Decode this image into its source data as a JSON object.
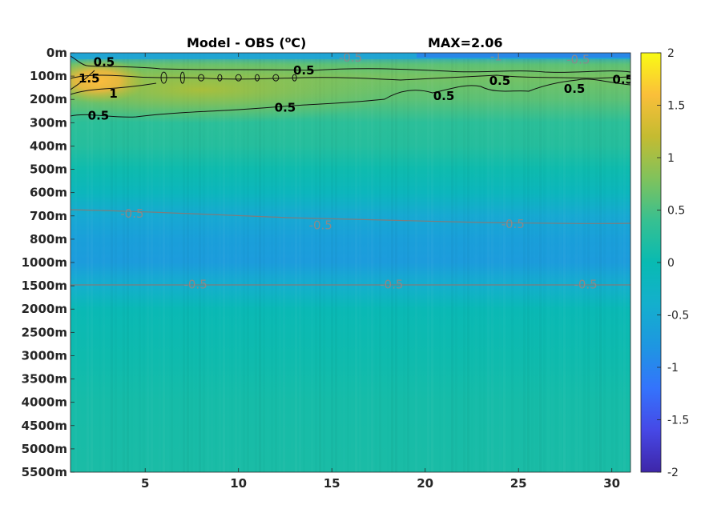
{
  "chart_data": {
    "type": "heatmap",
    "title": "Model - OBS (°C)",
    "title_unit_letter": "o",
    "annotation": "MAX=2.06",
    "xlabel": "",
    "ylabel": "",
    "x_ticks": [
      5,
      10,
      15,
      20,
      25,
      30
    ],
    "xlim": [
      1,
      31
    ],
    "y_levels": [
      "0m",
      "100m",
      "200m",
      "300m",
      "400m",
      "500m",
      "600m",
      "700m",
      "800m",
      "1000m",
      "1500m",
      "2000m",
      "2500m",
      "3000m",
      "3500m",
      "4000m",
      "4500m",
      "5000m",
      "5500m"
    ],
    "colorbar": {
      "colormap": "parula",
      "clim": [
        -2,
        2
      ],
      "ticks": [
        "2",
        "1.5",
        "1",
        "0.5",
        "0",
        "-0.5",
        "-1",
        "-1.5",
        "-2"
      ]
    },
    "row_profile": [
      {
        "level": "0m",
        "value": -0.7
      },
      {
        "level": "50m",
        "value": 0.6
      },
      {
        "level": "100m",
        "value": 0.75
      },
      {
        "level": "200m",
        "value": 0.6
      },
      {
        "level": "300m",
        "value": 0.3
      },
      {
        "level": "400m",
        "value": 0.25
      },
      {
        "level": "500m",
        "value": 0.05
      },
      {
        "level": "600m",
        "value": -0.15
      },
      {
        "level": "700m",
        "value": -0.5
      },
      {
        "level": "800m",
        "value": -0.65
      },
      {
        "level": "1000m",
        "value": -0.7
      },
      {
        "level": "1500m",
        "value": -0.4
      },
      {
        "level": "2000m",
        "value": -0.05
      },
      {
        "level": "3000m",
        "value": 0.05
      },
      {
        "level": "4000m",
        "value": 0.12
      },
      {
        "level": "5500m",
        "value": 0.15
      }
    ],
    "warm_core": {
      "x_range": [
        1,
        6
      ],
      "level": "100m",
      "max": 2.06
    },
    "contour_labels": {
      "positive": [
        {
          "text": "0.5",
          "x": 2.8,
          "level": 0.4
        },
        {
          "text": "1.5",
          "x": 2.0,
          "level": 1.1
        },
        {
          "text": "1",
          "x": 3.3,
          "level": 1.75
        },
        {
          "text": "0.5",
          "x": 2.5,
          "level": 2.7
        },
        {
          "text": "0.5",
          "x": 13.5,
          "level": 0.75
        },
        {
          "text": "0.5",
          "x": 12.5,
          "level": 2.35
        },
        {
          "text": "0.5",
          "x": 21.0,
          "level": 1.85
        },
        {
          "text": "0.5",
          "x": 24.0,
          "level": 1.2
        },
        {
          "text": "0.5",
          "x": 28.0,
          "level": 1.55
        },
        {
          "text": "0.5",
          "x": 30.6,
          "level": 1.15
        }
      ],
      "negative": [
        {
          "text": "-0.5",
          "x": 16.0,
          "level": 0.2
        },
        {
          "text": "-1",
          "x": 23.8,
          "level": 0.15
        },
        {
          "text": "-0.5",
          "x": 28.2,
          "level": 0.3
        },
        {
          "text": "-0.5",
          "x": 4.3,
          "level": 6.9
        },
        {
          "text": "-0.5",
          "x": 14.4,
          "level": 7.4
        },
        {
          "text": "-0.5",
          "x": 24.7,
          "level": 7.35
        },
        {
          "text": "-0.5",
          "x": 7.7,
          "level": 9.95
        },
        {
          "text": "-0.5",
          "x": 18.2,
          "level": 9.95
        },
        {
          "text": "-0.5",
          "x": 28.6,
          "level": 9.95
        }
      ]
    }
  }
}
